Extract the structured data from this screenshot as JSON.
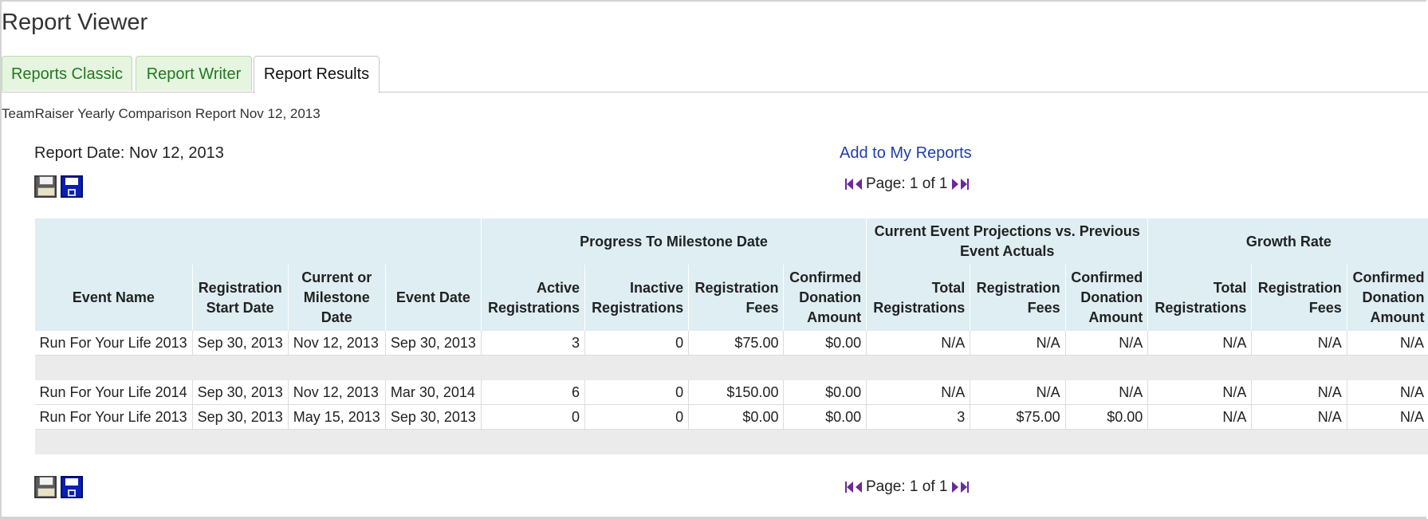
{
  "page_title": "Report Viewer",
  "tabs": [
    {
      "label": "Reports Classic",
      "active": false
    },
    {
      "label": "Report Writer",
      "active": false
    },
    {
      "label": "Report Results",
      "active": true
    }
  ],
  "report_heading": "TeamRaiser Yearly Comparison Report Nov 12, 2013",
  "report_date": "Report Date: Nov 12, 2013",
  "add_to_reports": "Add to My Reports",
  "pager": {
    "text": "Page: 1 of 1"
  },
  "icons": {
    "print": "print-icon",
    "save": "save-icon",
    "first": "first-page-icon",
    "prev": "prev-page-icon",
    "next": "next-page-icon",
    "last": "last-page-icon"
  },
  "colors": {
    "header_bg": "#deeef2",
    "tab_bg": "#e6f5e0",
    "tab_text": "#1e7a1e",
    "link": "#1f3fa8",
    "spacer_row": "#ebebeb"
  },
  "table": {
    "groups": {
      "progress": "Progress To Milestone Date",
      "projections": "Current Event Projections vs. Previous Event Actuals",
      "growth": "Growth Rate"
    },
    "columns": {
      "event_name": "Event Name",
      "reg_start": "Registration Start Date",
      "milestone": "Current or Milestone Date",
      "event_date": "Event Date",
      "active": "Active Registrations",
      "inactive": "Inactive Registrations",
      "reg_fees": "Registration Fees",
      "donation": "Confirmed Donation Amount",
      "proj_total": "Total Registrations",
      "proj_fees": "Registration Fees",
      "proj_donation": "Confirmed Donation Amount",
      "growth_total": "Total Registrations",
      "growth_fees": "Registration Fees",
      "growth_donation": "Confirmed Donation Amount"
    },
    "rows": [
      [
        "Run For Your Life 2013",
        "Sep 30, 2013",
        "Nov 12, 2013",
        "Sep 30, 2013",
        "3",
        "0",
        "$75.00",
        "$0.00",
        "N/A",
        "N/A",
        "N/A",
        "N/A",
        "N/A",
        "N/A"
      ],
      [
        "Run For Your Life 2014",
        "Sep 30, 2013",
        "Nov 12, 2013",
        "Mar 30, 2014",
        "6",
        "0",
        "$150.00",
        "$0.00",
        "N/A",
        "N/A",
        "N/A",
        "N/A",
        "N/A",
        "N/A"
      ],
      [
        "Run For Your Life 2013",
        "Sep 30, 2013",
        "May 15, 2013",
        "Sep 30, 2013",
        "0",
        "0",
        "$0.00",
        "$0.00",
        "3",
        "$75.00",
        "$0.00",
        "N/A",
        "N/A",
        "N/A"
      ]
    ]
  }
}
